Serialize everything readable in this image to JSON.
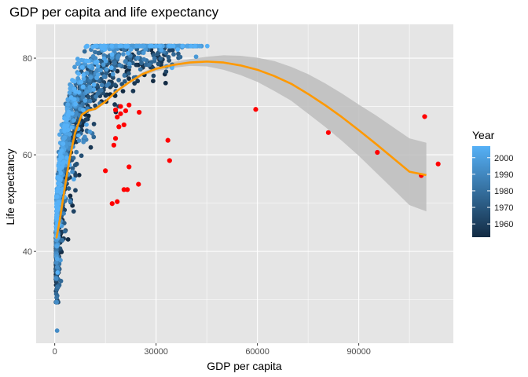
{
  "chart_data": {
    "type": "scatter",
    "title": "GDP per capita and life expectancy",
    "xlabel": "GDP per capita",
    "ylabel": "Life expectancy",
    "xlim": [
      -5500,
      118000
    ],
    "ylim": [
      21,
      87
    ],
    "x_ticks": [
      0,
      30000,
      60000,
      90000
    ],
    "x_tick_labels": [
      "0",
      "30000",
      "60000",
      "90000"
    ],
    "y_ticks": [
      40,
      60,
      80
    ],
    "y_tick_labels": [
      "40",
      "60",
      "80"
    ],
    "grid": true,
    "panel_background": "#e5e5e5",
    "gridline_color": "#ffffff",
    "legend": {
      "title": "Year",
      "placement": "right",
      "breaks": [
        1960,
        1970,
        1980,
        1990,
        2000
      ],
      "labels": [
        "1960",
        "1970",
        "1980",
        "1990",
        "2000"
      ],
      "range": [
        1952,
        2007
      ],
      "color_low": "#132b43",
      "color_high": "#56b1f7"
    },
    "highlight_color": "#ff0000",
    "highlighted_points": [
      [
        59500,
        69.4
      ],
      [
        81000,
        64.6
      ],
      [
        95500,
        60.5
      ],
      [
        108500,
        55.7
      ],
      [
        109500,
        67.9
      ],
      [
        113500,
        58.1
      ],
      [
        34000,
        58.8
      ],
      [
        33500,
        63.0
      ],
      [
        25000,
        68.8
      ],
      [
        24800,
        53.9
      ],
      [
        22000,
        57.5
      ],
      [
        21500,
        52.8
      ],
      [
        20500,
        52.8
      ],
      [
        18500,
        50.3
      ],
      [
        17000,
        49.9
      ],
      [
        15000,
        56.7
      ],
      [
        17500,
        62.0
      ],
      [
        18000,
        63.4
      ],
      [
        19000,
        65.8
      ],
      [
        20500,
        66.2
      ],
      [
        18500,
        67.8
      ],
      [
        19500,
        68.5
      ],
      [
        18000,
        69.3
      ],
      [
        19500,
        70.0
      ],
      [
        21000,
        69.1
      ],
      [
        22000,
        70.3
      ]
    ],
    "trend_line": {
      "name": "loess",
      "color": "#ff9900",
      "band_color": "#bdbdbd",
      "x": [
        500,
        1500,
        2500,
        3500,
        4500,
        6000,
        8000,
        10000,
        12000,
        15000,
        18000,
        22000,
        26000,
        30000,
        35000,
        40000,
        45000,
        50000,
        55000,
        60000,
        65000,
        70000,
        75000,
        80000,
        85000,
        90000,
        95000,
        100000,
        105000,
        110000
      ],
      "y": [
        42.7,
        46.5,
        51.0,
        55.5,
        59.5,
        64.5,
        68.3,
        69.2,
        69.5,
        71.0,
        73.0,
        75.0,
        76.7,
        77.8,
        78.6,
        79.1,
        79.3,
        79.1,
        78.5,
        77.6,
        76.3,
        74.7,
        72.6,
        70.3,
        67.8,
        65.1,
        62.3,
        59.4,
        56.5,
        55.8
      ],
      "upper": [
        43.3,
        47.0,
        51.4,
        55.9,
        59.9,
        64.8,
        68.6,
        69.5,
        69.8,
        71.3,
        73.3,
        75.3,
        77.1,
        78.3,
        79.2,
        79.8,
        80.3,
        80.6,
        80.5,
        80.1,
        79.4,
        78.2,
        76.7,
        74.8,
        72.7,
        70.4,
        68.2,
        65.8,
        63.4,
        62.5
      ],
      "lower": [
        42.1,
        46.0,
        50.6,
        55.1,
        59.1,
        64.2,
        68.0,
        68.9,
        69.2,
        70.7,
        72.7,
        74.7,
        76.3,
        77.3,
        78.0,
        78.4,
        78.3,
        77.6,
        76.5,
        75.1,
        73.2,
        71.2,
        68.5,
        65.8,
        62.9,
        59.8,
        56.4,
        53.0,
        49.6,
        48.3
      ]
    }
  }
}
